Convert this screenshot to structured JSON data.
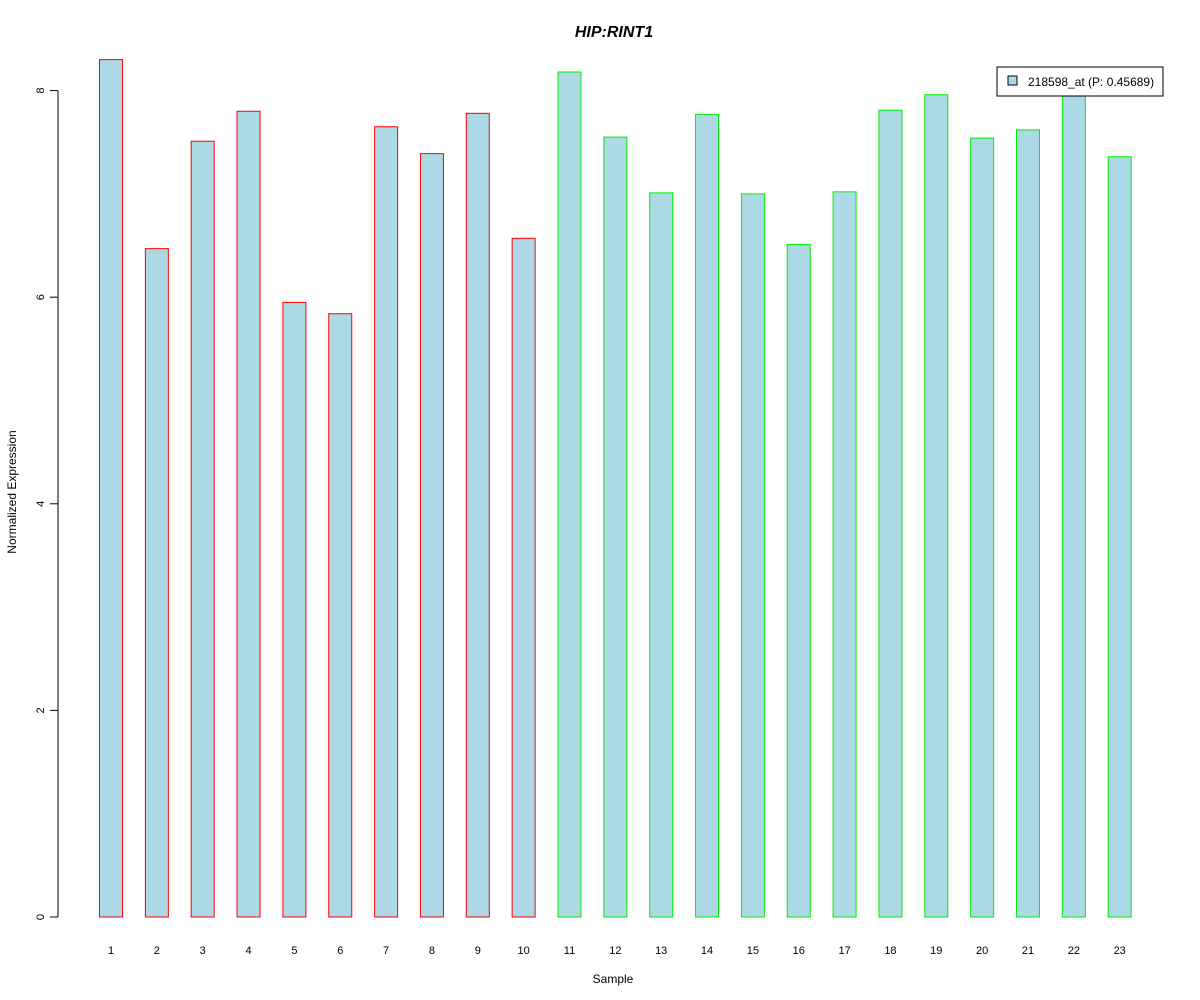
{
  "chart_data": {
    "type": "bar",
    "title": "HIP:RINT1",
    "title_color": "#0000CC",
    "xlabel": "Sample",
    "ylabel": "Normalized Expression",
    "ylim": [
      0,
      8.3
    ],
    "yticks": [
      0,
      2,
      4,
      6,
      8
    ],
    "grid": false,
    "legend_position": "top-right",
    "bar_fill": "#ADD8E6",
    "categories": [
      "1",
      "2",
      "3",
      "4",
      "5",
      "6",
      "7",
      "8",
      "9",
      "10",
      "11",
      "12",
      "13",
      "14",
      "15",
      "16",
      "17",
      "18",
      "19",
      "20",
      "21",
      "22",
      "23"
    ],
    "series": [
      {
        "name": "218598_at (P: 0.45689)",
        "values": [
          8.3,
          6.47,
          7.51,
          7.8,
          5.95,
          5.84,
          7.65,
          7.39,
          7.78,
          6.57,
          8.18,
          7.55,
          7.01,
          7.77,
          7.0,
          6.51,
          7.02,
          7.81,
          7.96,
          7.54,
          7.62,
          7.95,
          7.36
        ],
        "group_border_colors": [
          "#FF0000",
          "#FF0000",
          "#FF0000",
          "#FF0000",
          "#FF0000",
          "#FF0000",
          "#FF0000",
          "#FF0000",
          "#FF0000",
          "#FF0000",
          "#00EE00",
          "#00EE00",
          "#00EE00",
          "#00EE00",
          "#00EE00",
          "#00EE00",
          "#00EE00",
          "#00EE00",
          "#00EE00",
          "#00EE00",
          "#00EE00",
          "#00EE00",
          "#00EE00"
        ]
      }
    ]
  }
}
